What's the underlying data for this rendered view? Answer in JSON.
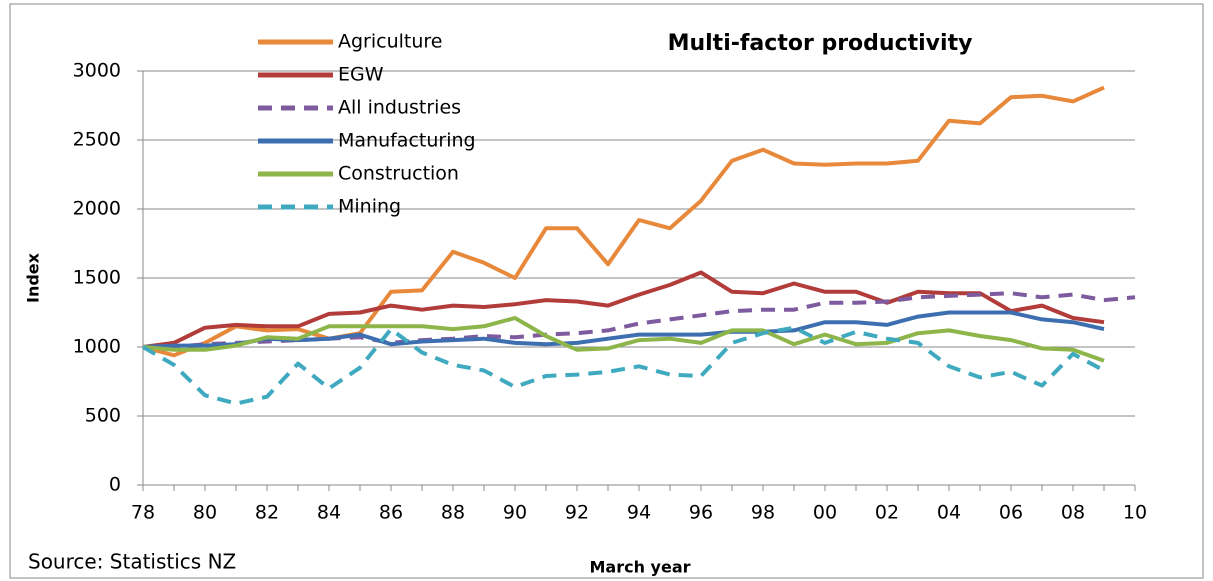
{
  "chart_data": {
    "type": "line",
    "title": "Multi-factor productivity",
    "y_label": "Index",
    "x_label": "March year",
    "source": "Source: Statistics NZ",
    "categories": [
      "78",
      null,
      "80",
      null,
      "82",
      null,
      "84",
      null,
      "86",
      null,
      "88",
      null,
      "90",
      null,
      "92",
      null,
      "94",
      null,
      "96",
      null,
      "98",
      null,
      "00",
      null,
      "02",
      null,
      "04",
      null,
      "06",
      null,
      "08",
      null,
      "10"
    ],
    "ylim": [
      0,
      3000
    ],
    "yticks": [
      0,
      500,
      1000,
      1500,
      2000,
      2500,
      3000
    ],
    "grid": true,
    "legend": "top-left",
    "series": [
      {
        "name": "Agriculture",
        "color": "#e8883a",
        "dashed": false,
        "values": [
          1000,
          940,
          1030,
          1150,
          1120,
          1130,
          1060,
          1100,
          1400,
          1410,
          1690,
          1610,
          1500,
          1860,
          1860,
          1600,
          1920,
          1860,
          2060,
          2350,
          2430,
          2330,
          2320,
          2330,
          2330,
          2350,
          2640,
          2620,
          2810,
          2820,
          2780,
          2880,
          null
        ]
      },
      {
        "name": "EGW",
        "color": "#b13c3a",
        "dashed": false,
        "values": [
          1000,
          1030,
          1140,
          1160,
          1150,
          1150,
          1240,
          1250,
          1300,
          1270,
          1300,
          1290,
          1310,
          1340,
          1330,
          1300,
          1380,
          1450,
          1540,
          1400,
          1390,
          1460,
          1400,
          1400,
          1320,
          1400,
          1390,
          1390,
          1260,
          1300,
          1210,
          1180,
          null
        ]
      },
      {
        "name": "All industries",
        "color": "#7d5b9e",
        "dashed": true,
        "values": [
          1000,
          1000,
          1020,
          1030,
          1040,
          1050,
          1060,
          1070,
          1030,
          1050,
          1060,
          1080,
          1070,
          1090,
          1100,
          1120,
          1170,
          1200,
          1230,
          1260,
          1270,
          1270,
          1320,
          1320,
          1330,
          1360,
          1370,
          1380,
          1390,
          1360,
          1380,
          1340,
          1360
        ]
      },
      {
        "name": "Manufacturing",
        "color": "#3d6fb0",
        "dashed": false,
        "values": [
          1000,
          1010,
          1010,
          1020,
          1060,
          1050,
          1060,
          1090,
          1020,
          1040,
          1050,
          1060,
          1030,
          1020,
          1030,
          1060,
          1090,
          1090,
          1090,
          1110,
          1110,
          1120,
          1180,
          1180,
          1160,
          1220,
          1250,
          1250,
          1250,
          1200,
          1180,
          1130,
          null
        ]
      },
      {
        "name": "Construction",
        "color": "#8db54a",
        "dashed": false,
        "values": [
          1000,
          980,
          980,
          1010,
          1070,
          1060,
          1150,
          1150,
          1150,
          1150,
          1130,
          1150,
          1210,
          1080,
          980,
          990,
          1050,
          1060,
          1030,
          1120,
          1120,
          1020,
          1090,
          1020,
          1030,
          1100,
          1120,
          1080,
          1050,
          990,
          980,
          900,
          null
        ]
      },
      {
        "name": "Mining",
        "color": "#3fa9c0",
        "dashed": true,
        "values": [
          1000,
          870,
          650,
          590,
          640,
          880,
          700,
          850,
          1130,
          960,
          870,
          830,
          710,
          790,
          800,
          820,
          860,
          800,
          790,
          1030,
          1100,
          1140,
          1030,
          1110,
          1060,
          1030,
          860,
          780,
          820,
          720,
          950,
          830,
          null
        ]
      }
    ]
  }
}
